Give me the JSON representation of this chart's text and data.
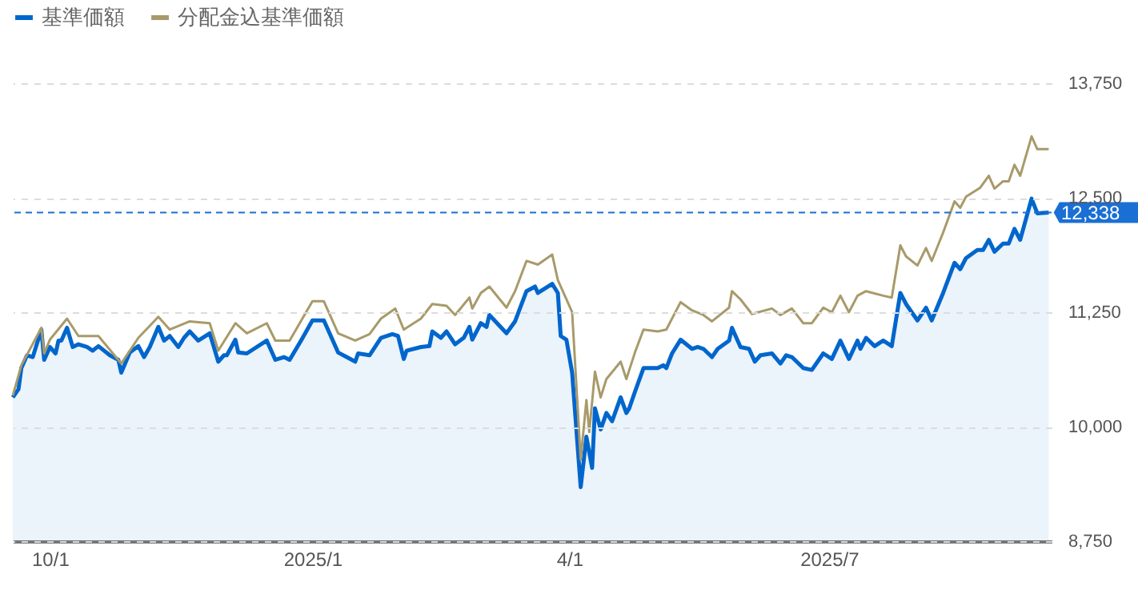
{
  "chart_data": {
    "type": "line",
    "xlim": [
      "2024-09-18",
      "2025-09-17"
    ],
    "ylim": [
      8750,
      13750
    ],
    "yticks": [
      {
        "value": 8750,
        "label": "8,750"
      },
      {
        "value": 10000,
        "label": "10,000"
      },
      {
        "value": 11250,
        "label": "11,250"
      },
      {
        "value": 12500,
        "label": "12,500"
      },
      {
        "value": 13750,
        "label": "13,750"
      }
    ],
    "xticks": [
      {
        "value": "2024-10-01",
        "label": "10/1"
      },
      {
        "value": "2025-01-01",
        "label": "2025/1"
      },
      {
        "value": "2025-04-01",
        "label": "4/1"
      },
      {
        "value": "2025-07-01",
        "label": "2025/7"
      }
    ],
    "grid": "y",
    "legend": "top left",
    "ref_lines": [
      {
        "axis": "y",
        "value": 12338,
        "label": "12,338",
        "color": "#1a6fd4",
        "line_style": "dashed"
      }
    ],
    "series": [
      {
        "name": "基準価額",
        "type": "area",
        "color": "#0066cc",
        "x": [
          "2024-09-18",
          "2024-09-20",
          "2024-09-21",
          "2024-09-23",
          "2024-09-25",
          "2024-09-28",
          "2024-09-29",
          "2024-10-01",
          "2024-10-03",
          "2024-10-04",
          "2024-10-05",
          "2024-10-07",
          "2024-10-09",
          "2024-10-11",
          "2024-10-14",
          "2024-10-16",
          "2024-10-18",
          "2024-10-22",
          "2024-10-25",
          "2024-10-26",
          "2024-10-29",
          "2024-11-01",
          "2024-11-03",
          "2024-11-05",
          "2024-11-08",
          "2024-11-10",
          "2024-11-12",
          "2024-11-15",
          "2024-11-17",
          "2024-11-19",
          "2024-11-22",
          "2024-11-26",
          "2024-11-29",
          "2024-12-01",
          "2024-12-02",
          "2024-12-05",
          "2024-12-06",
          "2024-12-09",
          "2024-12-16",
          "2024-12-19",
          "2024-12-22",
          "2024-12-24",
          "2024-12-28",
          "2025-01-01",
          "2025-01-05",
          "2025-01-07",
          "2025-01-10",
          "2025-01-13",
          "2025-01-16",
          "2025-01-17",
          "2025-01-21",
          "2025-01-25",
          "2025-01-29",
          "2025-01-31",
          "2025-02-02",
          "2025-02-03",
          "2025-02-08",
          "2025-02-11",
          "2025-02-12",
          "2025-02-15",
          "2025-02-17",
          "2025-02-20",
          "2025-02-23",
          "2025-02-25",
          "2025-02-26",
          "2025-03-01",
          "2025-03-03",
          "2025-03-04",
          "2025-03-10",
          "2025-03-13",
          "2025-03-17",
          "2025-03-20",
          "2025-03-21",
          "2025-03-26",
          "2025-03-28",
          "2025-03-29",
          "2025-03-31",
          "2025-04-02",
          "2025-04-05",
          "2025-04-07",
          "2025-04-09",
          "2025-04-10",
          "2025-04-12",
          "2025-04-14",
          "2025-04-16",
          "2025-04-19",
          "2025-04-21",
          "2025-04-22",
          "2025-04-24",
          "2025-04-27",
          "2025-05-02",
          "2025-05-04",
          "2025-05-05",
          "2025-05-07",
          "2025-05-10",
          "2025-05-14",
          "2025-05-16",
          "2025-05-18",
          "2025-05-21",
          "2025-05-23",
          "2025-05-27",
          "2025-05-28",
          "2025-05-31",
          "2025-06-03",
          "2025-06-05",
          "2025-06-07",
          "2025-06-11",
          "2025-06-14",
          "2025-06-16",
          "2025-06-18",
          "2025-06-22",
          "2025-06-25",
          "2025-06-29",
          "2025-07-02",
          "2025-07-05",
          "2025-07-08",
          "2025-07-11",
          "2025-07-12",
          "2025-07-14",
          "2025-07-17",
          "2025-07-20",
          "2025-07-23",
          "2025-07-26",
          "2025-07-28",
          "2025-08-01",
          "2025-08-04",
          "2025-08-06",
          "2025-08-10",
          "2025-08-14",
          "2025-08-16",
          "2025-08-18",
          "2025-08-22",
          "2025-08-24",
          "2025-08-26",
          "2025-08-28",
          "2025-08-31",
          "2025-09-02",
          "2025-09-04",
          "2025-09-06",
          "2025-09-10",
          "2025-09-12",
          "2025-09-16"
        ],
        "values": [
          10320,
          10410,
          10640,
          10780,
          10760,
          11060,
          10730,
          10870,
          10800,
          10940,
          10940,
          11080,
          10870,
          10900,
          10870,
          10830,
          10880,
          10780,
          10730,
          10590,
          10810,
          10880,
          10760,
          10870,
          11090,
          10940,
          10990,
          10870,
          10970,
          11040,
          10940,
          11020,
          10710,
          10780,
          10780,
          10950,
          10810,
          10800,
          10940,
          10730,
          10760,
          10730,
          10940,
          11160,
          11160,
          11020,
          10810,
          10760,
          10710,
          10800,
          10780,
          10970,
          11010,
          10990,
          10740,
          10830,
          10870,
          10880,
          11040,
          10970,
          11040,
          10900,
          10970,
          11090,
          10950,
          11130,
          11090,
          11220,
          11020,
          11150,
          11480,
          11530,
          11460,
          11560,
          11460,
          10990,
          10950,
          10590,
          9340,
          9890,
          9550,
          10200,
          9970,
          10150,
          10060,
          10320,
          10150,
          10200,
          10380,
          10640,
          10640,
          10670,
          10640,
          10800,
          10950,
          10850,
          10870,
          10850,
          10760,
          10850,
          10940,
          11080,
          10870,
          10850,
          10710,
          10780,
          10800,
          10690,
          10780,
          10760,
          10640,
          10620,
          10800,
          10740,
          10940,
          10740,
          10940,
          10850,
          10970,
          10880,
          10940,
          10880,
          11460,
          11340,
          11160,
          11300,
          11160,
          11460,
          11790,
          11720,
          11840,
          11930,
          11930,
          12040,
          11910,
          12000,
          12000,
          12160,
          12040,
          12490,
          12330,
          12338
        ]
      },
      {
        "name": "分配金込基準価額",
        "color": "#a89a6a",
        "x": [
          "2024-09-18",
          "2024-09-21",
          "2024-09-28",
          "2024-09-29",
          "2024-10-01",
          "2024-10-07",
          "2024-10-11",
          "2024-10-18",
          "2024-10-26",
          "2024-11-01",
          "2024-11-08",
          "2024-11-12",
          "2024-11-19",
          "2024-11-26",
          "2024-11-29",
          "2024-12-05",
          "2024-12-09",
          "2024-12-16",
          "2024-12-19",
          "2024-12-24",
          "2025-01-01",
          "2025-01-05",
          "2025-01-10",
          "2025-01-16",
          "2025-01-21",
          "2025-01-25",
          "2025-01-30",
          "2025-02-02",
          "2025-02-08",
          "2025-02-12",
          "2025-02-17",
          "2025-02-20",
          "2025-02-25",
          "2025-02-26",
          "2025-03-01",
          "2025-03-04",
          "2025-03-10",
          "2025-03-13",
          "2025-03-17",
          "2025-03-21",
          "2025-03-26",
          "2025-03-28",
          "2025-03-31",
          "2025-04-02",
          "2025-04-05",
          "2025-04-07",
          "2025-04-08",
          "2025-04-10",
          "2025-04-12",
          "2025-04-14",
          "2025-04-19",
          "2025-04-21",
          "2025-04-24",
          "2025-04-27",
          "2025-05-02",
          "2025-05-05",
          "2025-05-10",
          "2025-05-14",
          "2025-05-18",
          "2025-05-21",
          "2025-05-27",
          "2025-05-28",
          "2025-05-31",
          "2025-06-04",
          "2025-06-11",
          "2025-06-14",
          "2025-06-18",
          "2025-06-22",
          "2025-06-25",
          "2025-06-29",
          "2025-07-02",
          "2025-07-05",
          "2025-07-08",
          "2025-07-11",
          "2025-07-14",
          "2025-07-20",
          "2025-07-23",
          "2025-07-26",
          "2025-07-28",
          "2025-08-01",
          "2025-08-04",
          "2025-08-06",
          "2025-08-10",
          "2025-08-14",
          "2025-08-16",
          "2025-08-18",
          "2025-08-23",
          "2025-08-26",
          "2025-08-28",
          "2025-08-31",
          "2025-09-02",
          "2025-09-04",
          "2025-09-06",
          "2025-09-10",
          "2025-09-12",
          "2025-09-16"
        ],
        "values": [
          10340,
          10670,
          11080,
          10800,
          10950,
          11180,
          10990,
          10990,
          10690,
          10970,
          11200,
          11060,
          11150,
          11130,
          10830,
          11130,
          11020,
          11130,
          10940,
          10940,
          11370,
          11370,
          11020,
          10940,
          11010,
          11180,
          11290,
          11060,
          11180,
          11340,
          11320,
          11220,
          11410,
          11290,
          11460,
          11530,
          11300,
          11480,
          11810,
          11770,
          11880,
          11600,
          11390,
          11250,
          9640,
          10290,
          9940,
          10600,
          10320,
          10520,
          10710,
          10520,
          10810,
          11060,
          11040,
          11060,
          11360,
          11270,
          11220,
          11150,
          11300,
          11480,
          11390,
          11230,
          11290,
          11220,
          11290,
          11130,
          11130,
          11300,
          11250,
          11430,
          11250,
          11430,
          11480,
          11430,
          11410,
          11980,
          11860,
          11760,
          11950,
          11810,
          12120,
          12460,
          12390,
          12510,
          12610,
          12740,
          12600,
          12680,
          12680,
          12860,
          12740,
          13170,
          13030,
          13030
        ]
      }
    ]
  }
}
